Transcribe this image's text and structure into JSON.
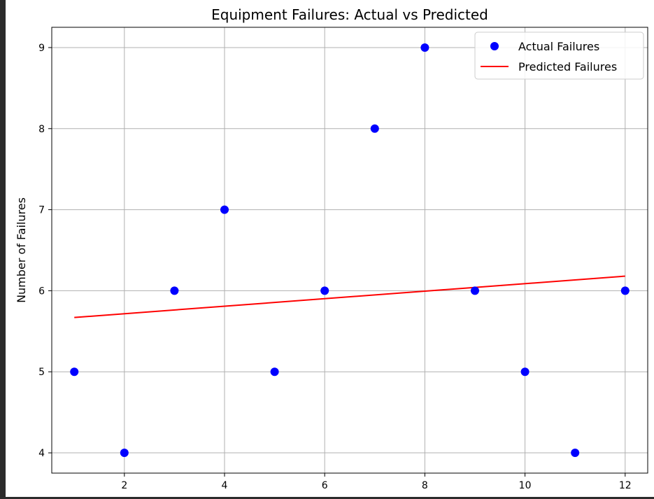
{
  "chart_data": {
    "type": "scatter",
    "title": "Equipment Failures: Actual vs Predicted",
    "xlabel": "",
    "ylabel": "Number of Failures",
    "xlim": [
      0.55,
      12.45
    ],
    "ylim": [
      3.75,
      9.25
    ],
    "xticks": [
      2,
      4,
      6,
      8,
      10,
      12
    ],
    "yticks": [
      4,
      5,
      6,
      7,
      8,
      9
    ],
    "grid": true,
    "legend_position": "top-right",
    "series": [
      {
        "name": "Actual Failures",
        "kind": "scatter",
        "color": "#0000ff",
        "x": [
          1,
          2,
          3,
          4,
          5,
          6,
          7,
          8,
          9,
          10,
          11,
          12
        ],
        "y": [
          5,
          4,
          6,
          7,
          5,
          6,
          8,
          9,
          6,
          5,
          4,
          6
        ]
      },
      {
        "name": "Predicted Failures",
        "kind": "line",
        "color": "#ff0000",
        "x": [
          1,
          12
        ],
        "y": [
          5.67,
          6.18
        ]
      }
    ]
  }
}
